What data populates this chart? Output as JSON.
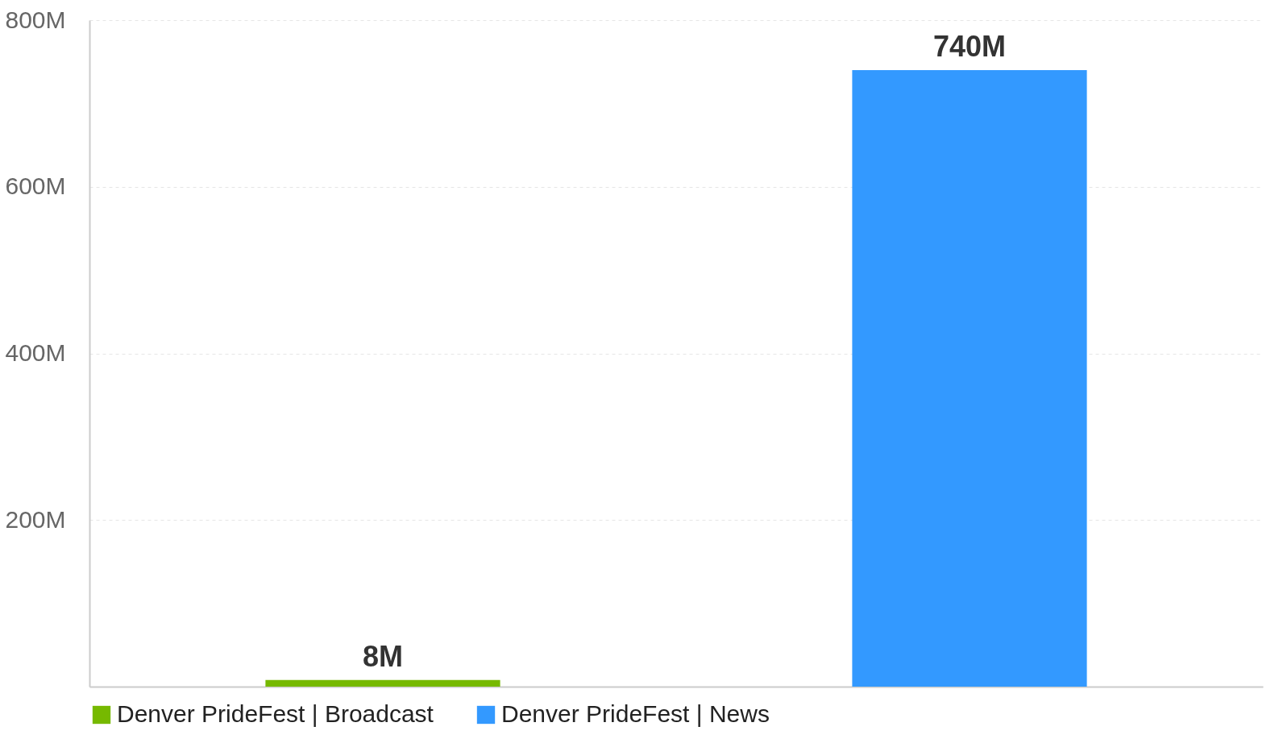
{
  "chart_data": {
    "type": "bar",
    "categories": [
      null,
      null
    ],
    "series": [
      {
        "name": "Denver PrideFest | Broadcast",
        "color": "#76b900",
        "values": [
          8,
          null
        ]
      },
      {
        "name": "Denver PrideFest | News",
        "color": "#3399ff",
        "values": [
          null,
          740
        ]
      }
    ],
    "value_labels": [
      [
        "8M",
        null
      ],
      [
        null,
        "740M"
      ]
    ],
    "ylim": [
      0,
      800
    ],
    "yticks": [
      {
        "value": 0,
        "label": null
      },
      {
        "value": 200,
        "label": "200M"
      },
      {
        "value": 400,
        "label": "400M"
      },
      {
        "value": 600,
        "label": "600M"
      },
      {
        "value": 800,
        "label": "800M"
      }
    ],
    "grid": "y",
    "legend": "bottom"
  }
}
